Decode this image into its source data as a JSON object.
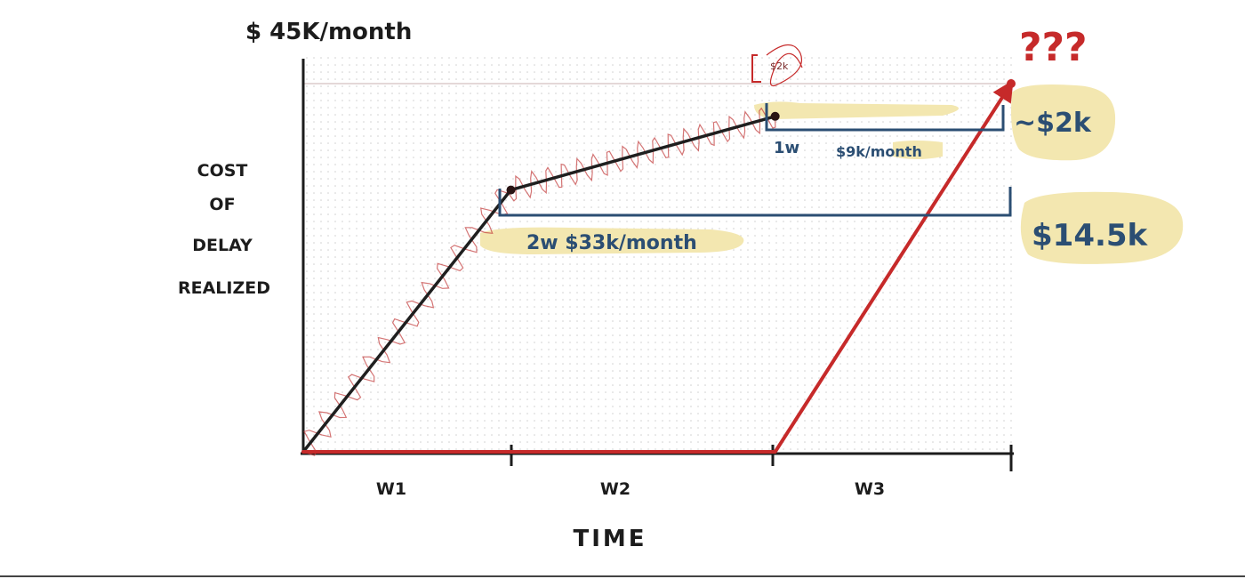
{
  "chart_data": {
    "type": "line",
    "ymax_label": "$ 45K/month",
    "ylabel_lines": [
      "COST",
      "OF",
      "DELAY",
      "REALIZED"
    ],
    "xlabel": "TIME",
    "categories": [
      "W1",
      "W2",
      "W3"
    ],
    "series": [
      {
        "color": "#1f1f1f",
        "x": [
          0,
          0.88,
          2.0
        ],
        "y": [
          0,
          32,
          41
        ]
      },
      {
        "color": "#c62a2a",
        "x": [
          0,
          2.0,
          3.0
        ],
        "y": [
          0,
          0,
          45
        ]
      }
    ],
    "xlim": [
      0,
      3
    ],
    "ylim": [
      0,
      45
    ],
    "grid": true,
    "annotations": {
      "brace_short": {
        "label_a": "1w",
        "label_b": "$9k/month",
        "total": "~$2k"
      },
      "brace_long": {
        "label": "2w $33k/month",
        "total": "$14.5k"
      },
      "peak_tag": "$2k",
      "question": "???"
    },
    "colors": {
      "black_line": "#1f1f1f",
      "red_line": "#c62a2a",
      "brace": "#2b4e73",
      "highlight": "#f3e7b0",
      "grid": "#cfcfcf"
    }
  }
}
